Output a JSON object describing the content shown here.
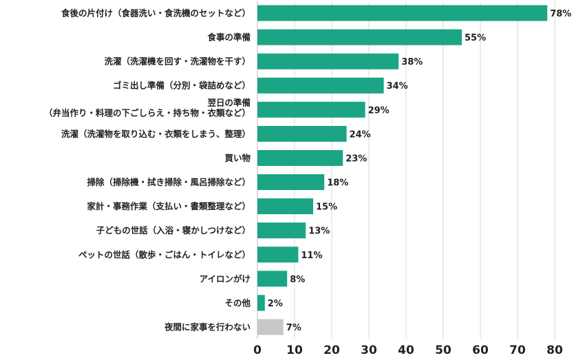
{
  "chart_data": {
    "type": "bar",
    "orientation": "horizontal",
    "categories": [
      [
        "食後の片付け（食器洗い・食洗機のセットなど）"
      ],
      [
        "食事の準備"
      ],
      [
        "洗濯（洗濯機を回す・洗濯物を干す）"
      ],
      [
        "ゴミ出し準備（分別・袋詰めなど）"
      ],
      [
        "翌日の準備",
        "（弁当作り・料理の下ごしらえ・持ち物・衣類など）"
      ],
      [
        "洗濯（洗濯物を取り込む・衣類をしまう、整理）"
      ],
      [
        "買い物"
      ],
      [
        "掃除（掃除機・拭き掃除・風呂掃除など）"
      ],
      [
        "家計・事務作業（支払い・書類整理など）"
      ],
      [
        "子どもの世話（入浴・寝かしつけなど）"
      ],
      [
        "ペットの世話（散歩・ごはん・トイレなど）"
      ],
      [
        "アイロンがけ"
      ],
      [
        "その他"
      ],
      [
        "夜間に家事を行わない"
      ]
    ],
    "values": [
      78,
      55,
      38,
      34,
      29,
      24,
      23,
      18,
      15,
      13,
      11,
      8,
      2,
      7
    ],
    "value_labels": [
      "78%",
      "55%",
      "38%",
      "34%",
      "29%",
      "24%",
      "23%",
      "18%",
      "15%",
      "13%",
      "11%",
      "8%",
      "2%",
      "7%"
    ],
    "bar_colors": [
      "#1ba584",
      "#1ba584",
      "#1ba584",
      "#1ba584",
      "#1ba584",
      "#1ba584",
      "#1ba584",
      "#1ba584",
      "#1ba584",
      "#1ba584",
      "#1ba584",
      "#1ba584",
      "#1ba584",
      "#c8c8c8"
    ],
    "xlim": [
      0,
      80
    ],
    "xticks": [
      "0",
      "10",
      "20",
      "30",
      "40",
      "50",
      "60",
      "70",
      "80"
    ],
    "grid": true,
    "title": "",
    "xlabel": "",
    "ylabel": ""
  }
}
